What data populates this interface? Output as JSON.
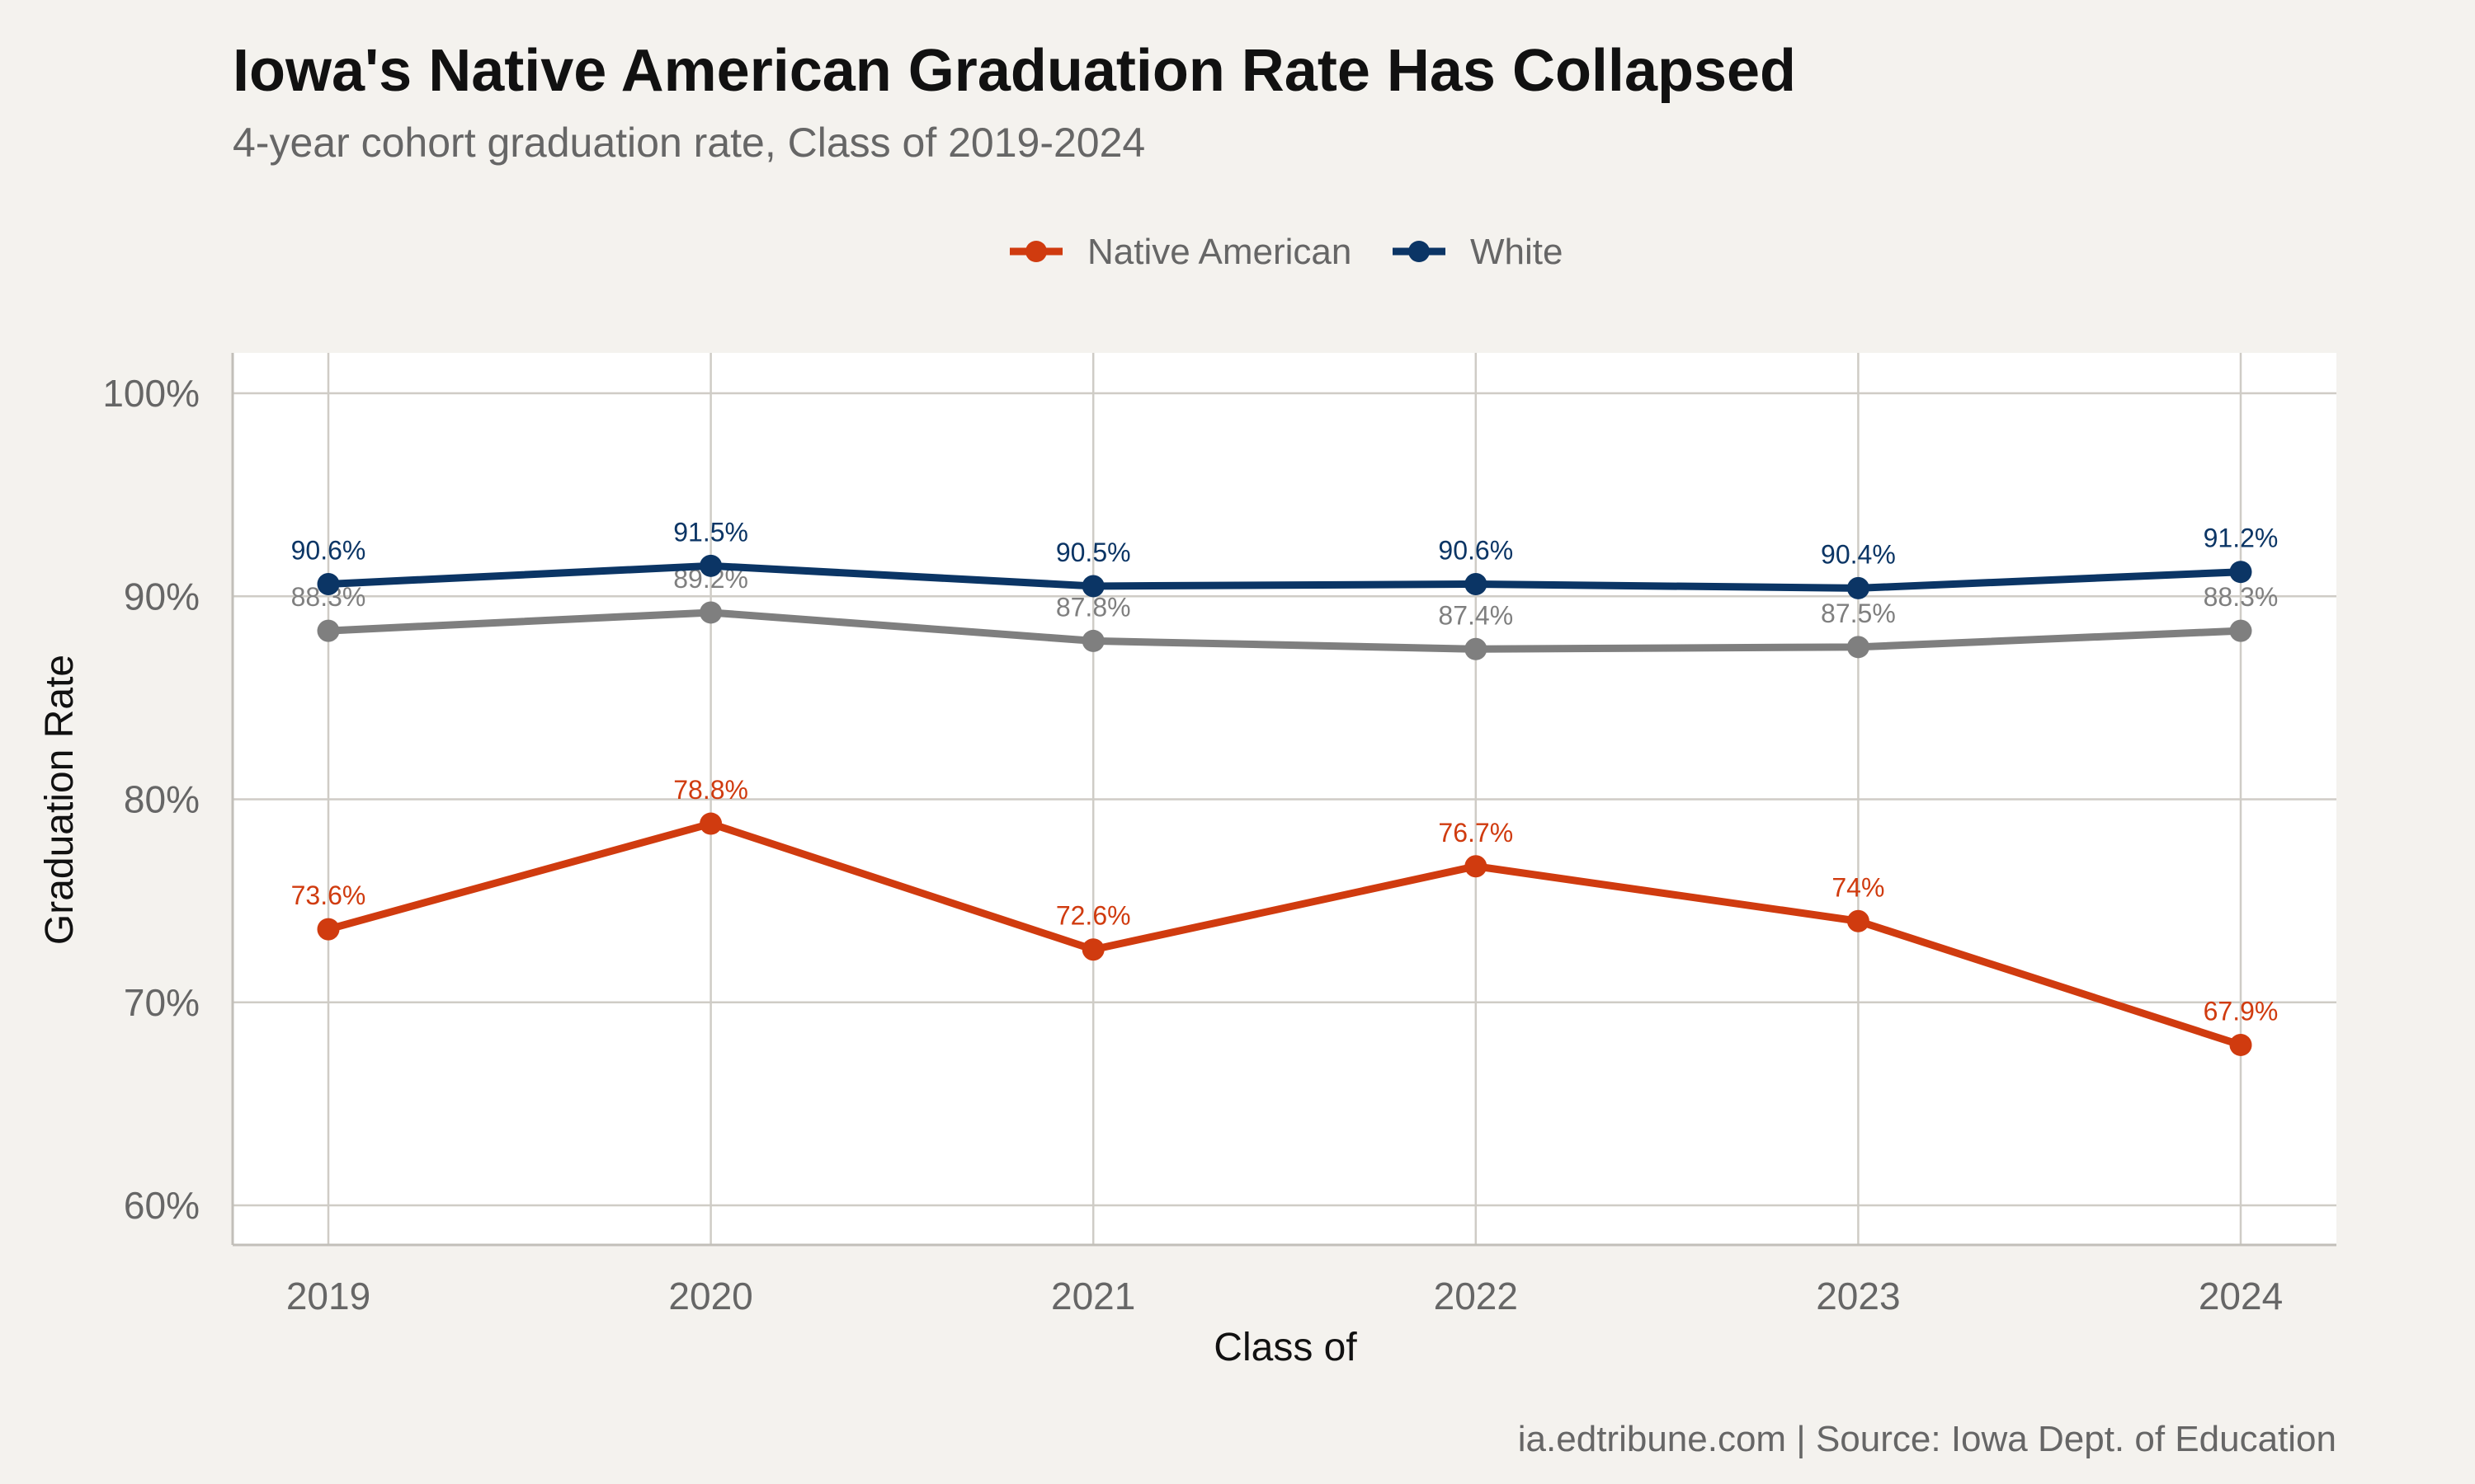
{
  "title": "Iowa's Native American Graduation Rate Has Collapsed",
  "subtitle": "4-year cohort graduation rate, Class of 2019-2024",
  "caption": "ia.edtribune.com | Source: Iowa Dept. of Education",
  "chart_data": {
    "type": "line",
    "xlabel": "Class of",
    "ylabel": "Graduation Rate",
    "x": [
      2019,
      2020,
      2021,
      2022,
      2023,
      2024
    ],
    "x_tick_labels": [
      "2019",
      "2020",
      "2021",
      "2022",
      "2023",
      "2024"
    ],
    "ylim": [
      58,
      102
    ],
    "y_ticks": [
      60,
      70,
      80,
      90,
      100
    ],
    "y_tick_labels": [
      "60%",
      "70%",
      "80%",
      "90%",
      "100%"
    ],
    "grid": true,
    "legend_position": "top",
    "series": [
      {
        "name": "Native American",
        "in_legend": true,
        "color": "#d03b0f",
        "values": [
          73.6,
          78.8,
          72.6,
          76.7,
          74.0,
          67.9
        ],
        "labels": [
          "73.6%",
          "78.8%",
          "72.6%",
          "76.7%",
          "74%",
          "67.9%"
        ]
      },
      {
        "name": "White",
        "in_legend": true,
        "color": "#0b3565",
        "values": [
          90.6,
          91.5,
          90.5,
          90.6,
          90.4,
          91.2
        ],
        "labels": [
          "90.6%",
          "91.5%",
          "90.5%",
          "90.6%",
          "90.4%",
          "91.2%"
        ]
      },
      {
        "name": "",
        "in_legend": false,
        "color": "#7f7f7f",
        "values": [
          88.3,
          89.2,
          87.8,
          87.4,
          87.5,
          88.3
        ],
        "labels": [
          "88.3%",
          "89.2%",
          "87.8%",
          "87.4%",
          "87.5%",
          "88.3%"
        ]
      }
    ]
  }
}
